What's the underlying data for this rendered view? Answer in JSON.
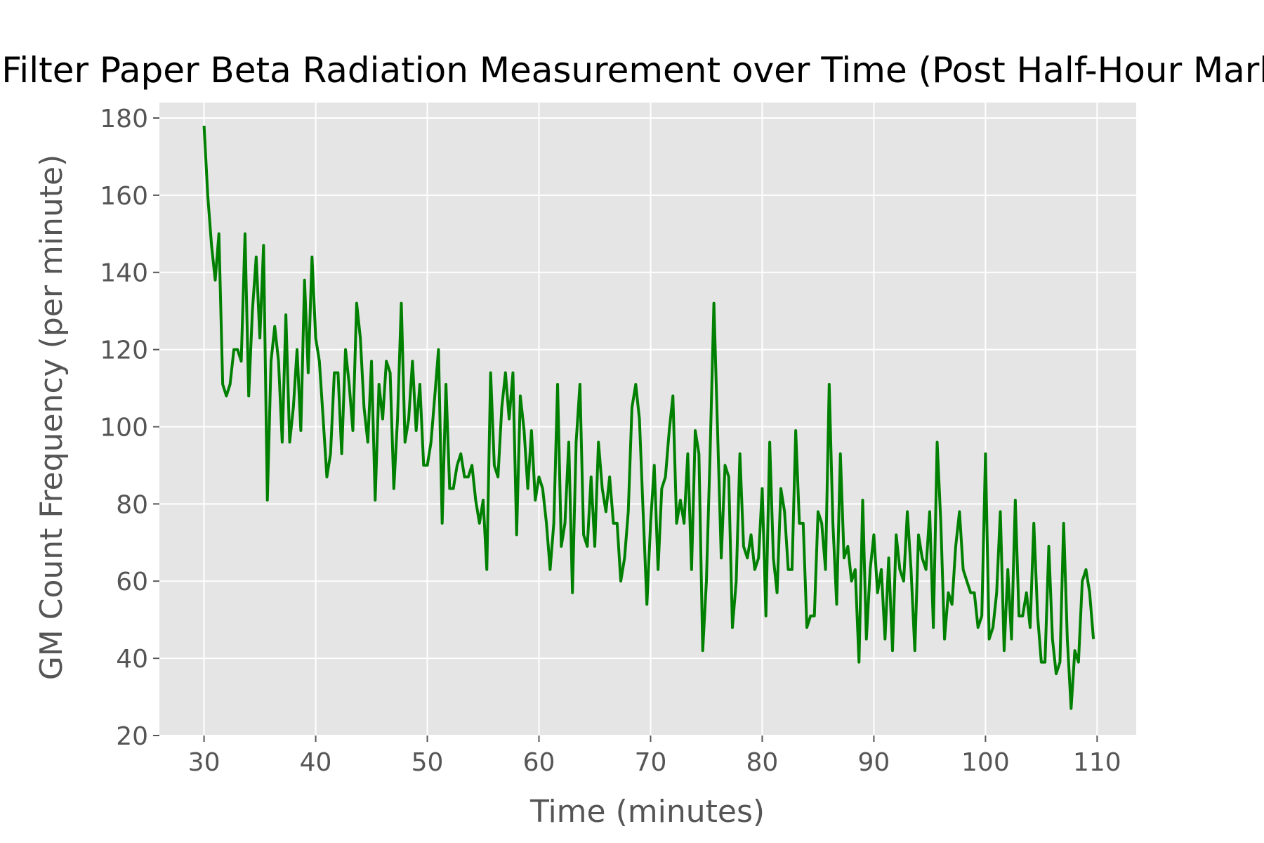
{
  "chart_data": {
    "type": "line",
    "title": "Filter Paper Beta Radiation Measurement over Time (Post Half-Hour Mark)",
    "xlabel": "Time (minutes)",
    "ylabel": "GM Count Frequency (per minute)",
    "xlim": [
      26,
      113.5
    ],
    "ylim": [
      20,
      184
    ],
    "xticks": [
      30,
      40,
      50,
      60,
      70,
      80,
      90,
      100,
      110
    ],
    "yticks": [
      20,
      40,
      60,
      80,
      100,
      120,
      140,
      160,
      180
    ],
    "grid": true,
    "background_color": "#e5e5e5",
    "grid_color": "#ffffff",
    "line_color": "#008000",
    "x": [
      30.0,
      30.33,
      30.67,
      31.0,
      31.33,
      31.67,
      32.0,
      32.33,
      32.67,
      33.0,
      33.33,
      33.67,
      34.0,
      34.33,
      34.67,
      35.0,
      35.33,
      35.67,
      36.0,
      36.33,
      36.67,
      37.0,
      37.33,
      37.67,
      38.0,
      38.33,
      38.67,
      39.0,
      39.33,
      39.67,
      40.0,
      40.33,
      40.67,
      41.0,
      41.33,
      41.67,
      42.0,
      42.33,
      42.67,
      43.0,
      43.33,
      43.67,
      44.0,
      44.33,
      44.67,
      45.0,
      45.33,
      45.67,
      46.0,
      46.33,
      46.67,
      47.0,
      47.33,
      47.67,
      48.0,
      48.33,
      48.67,
      49.0,
      49.33,
      49.67,
      50.0,
      50.33,
      50.67,
      51.0,
      51.33,
      51.67,
      52.0,
      52.33,
      52.67,
      53.0,
      53.33,
      53.67,
      54.0,
      54.33,
      54.67,
      55.0,
      55.33,
      55.67,
      56.0,
      56.33,
      56.67,
      57.0,
      57.33,
      57.67,
      58.0,
      58.33,
      58.67,
      59.0,
      59.33,
      59.67,
      60.0,
      60.33,
      60.67,
      61.0,
      61.33,
      61.67,
      62.0,
      62.33,
      62.67,
      63.0,
      63.33,
      63.67,
      64.0,
      64.33,
      64.67,
      65.0,
      65.33,
      65.67,
      66.0,
      66.33,
      66.67,
      67.0,
      67.33,
      67.67,
      68.0,
      68.33,
      68.67,
      69.0,
      69.33,
      69.67,
      70.0,
      70.33,
      70.67,
      71.0,
      71.33,
      71.67,
      72.0,
      72.33,
      72.67,
      73.0,
      73.33,
      73.67,
      74.0,
      74.33,
      74.67,
      75.0,
      75.33,
      75.67,
      76.0,
      76.33,
      76.67,
      77.0,
      77.33,
      77.67,
      78.0,
      78.33,
      78.67,
      79.0,
      79.33,
      79.67,
      80.0,
      80.33,
      80.67,
      81.0,
      81.33,
      81.67,
      82.0,
      82.33,
      82.67,
      83.0,
      83.33,
      83.67,
      84.0,
      84.33,
      84.67,
      85.0,
      85.33,
      85.67,
      86.0,
      86.33,
      86.67,
      87.0,
      87.33,
      87.67,
      88.0,
      88.33,
      88.67,
      89.0,
      89.33,
      89.67,
      90.0,
      90.33,
      90.67,
      91.0,
      91.33,
      91.67,
      92.0,
      92.33,
      92.67,
      93.0,
      93.33,
      93.67,
      94.0,
      94.33,
      94.67,
      95.0,
      95.33,
      95.67,
      96.0,
      96.33,
      96.67,
      97.0,
      97.33,
      97.67,
      98.0,
      98.33,
      98.67,
      99.0,
      99.33,
      99.67,
      100.0,
      100.33,
      100.67,
      101.0,
      101.33,
      101.67,
      102.0,
      102.33,
      102.67,
      103.0,
      103.33,
      103.67,
      104.0,
      104.33,
      104.67,
      105.0,
      105.33,
      105.67,
      106.0,
      106.33,
      106.67,
      107.0,
      107.33,
      107.67,
      108.0,
      108.33,
      108.67,
      109.0,
      109.33,
      109.67
    ],
    "y": [
      178,
      160,
      147,
      138,
      150,
      111,
      108,
      111,
      120,
      120,
      117,
      150,
      108,
      130,
      144,
      123,
      147,
      81,
      117,
      126,
      117,
      96,
      129,
      96,
      105,
      120,
      99,
      138,
      114,
      144,
      123,
      117,
      102,
      87,
      93,
      114,
      114,
      93,
      120,
      111,
      99,
      132,
      123,
      105,
      96,
      117,
      81,
      111,
      102,
      117,
      114,
      84,
      102,
      132,
      96,
      102,
      117,
      99,
      111,
      90,
      90,
      96,
      108,
      120,
      75,
      111,
      84,
      84,
      90,
      93,
      87,
      87,
      90,
      81,
      75,
      81,
      63,
      114,
      90,
      87,
      105,
      114,
      102,
      114,
      72,
      108,
      99,
      84,
      99,
      81,
      87,
      84,
      75,
      63,
      75,
      111,
      69,
      75,
      96,
      57,
      96,
      111,
      72,
      69,
      87,
      69,
      96,
      84,
      78,
      87,
      75,
      75,
      60,
      66,
      78,
      105,
      111,
      102,
      78,
      54,
      75,
      90,
      63,
      84,
      87,
      99,
      108,
      75,
      81,
      75,
      93,
      63,
      99,
      93,
      42,
      60,
      93,
      132,
      99,
      66,
      90,
      87,
      48,
      60,
      93,
      69,
      66,
      72,
      63,
      66,
      84,
      51,
      96,
      66,
      57,
      84,
      78,
      63,
      63,
      99,
      75,
      75,
      48,
      51,
      51,
      78,
      75,
      63,
      111,
      75,
      54,
      93,
      66,
      69,
      60,
      63,
      39,
      81,
      45,
      63,
      72,
      57,
      63,
      45,
      66,
      42,
      72,
      63,
      60,
      78,
      63,
      42,
      72,
      66,
      63,
      78,
      48,
      96,
      75,
      45,
      57,
      54,
      69,
      78,
      63,
      60,
      57,
      57,
      48,
      51,
      93,
      45,
      48,
      57,
      78,
      42,
      63,
      45,
      81,
      51,
      51,
      57,
      48,
      75,
      51,
      39,
      39,
      69,
      45,
      36,
      39,
      75,
      45,
      27,
      42,
      39,
      60,
      63,
      57,
      45
    ]
  }
}
